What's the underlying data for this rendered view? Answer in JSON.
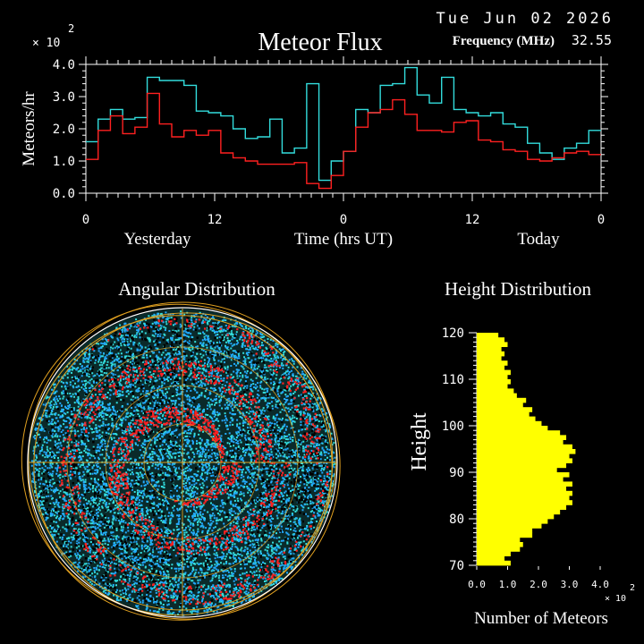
{
  "header": {
    "date": "Tue Jun 02 2026",
    "frequency_label": "Frequency (MHz)",
    "frequency_value": "32.55"
  },
  "colors": {
    "background": "#000000",
    "cyan": "#33dddd",
    "red": "#ff2020",
    "yellow": "#ffff00",
    "orange": "#e0a020",
    "white": "#ffffff"
  },
  "chart_data": [
    {
      "type": "line",
      "title": "Meteor Flux",
      "xlabel": "Time (hrs UT)",
      "ylabel": "Meteors/hr",
      "y_exponent_label": "× 10",
      "y_exponent_power": "2",
      "xlim": [
        0,
        48
      ],
      "ylim": [
        0,
        4
      ],
      "xticks": [
        0,
        12,
        24,
        36,
        48
      ],
      "xtick_labels": [
        "0",
        "12",
        "0",
        "12",
        "0"
      ],
      "yticks": [
        0,
        1,
        2,
        3,
        4
      ],
      "ytick_labels": [
        "0.0",
        "1.0",
        "2.0",
        "3.0",
        "4.0"
      ],
      "period_labels": [
        "Yesterday",
        "Today"
      ],
      "line_style": "step",
      "series": [
        {
          "color": "#33dddd",
          "values": [
            1.6,
            2.3,
            2.6,
            2.3,
            2.35,
            3.6,
            3.5,
            3.5,
            3.35,
            2.55,
            2.5,
            2.4,
            2.0,
            1.7,
            1.75,
            2.3,
            1.25,
            1.4,
            3.4,
            0.4,
            1.0,
            1.3,
            2.6,
            2.5,
            3.35,
            3.4,
            3.9,
            3.05,
            2.8,
            3.6,
            2.6,
            2.5,
            2.4,
            2.5,
            2.15,
            2.05,
            1.55,
            1.25,
            1.05,
            1.4,
            1.55,
            1.95
          ]
        },
        {
          "color": "#ff2020",
          "values": [
            1.05,
            1.95,
            2.4,
            1.85,
            2.05,
            3.1,
            2.15,
            1.75,
            1.95,
            1.8,
            1.95,
            1.25,
            1.1,
            1.0,
            0.9,
            0.9,
            0.9,
            0.95,
            0.3,
            0.15,
            0.55,
            1.3,
            2.05,
            2.5,
            2.6,
            2.9,
            2.45,
            1.95,
            1.95,
            1.9,
            2.2,
            2.25,
            1.65,
            1.6,
            1.35,
            1.3,
            1.05,
            1.0,
            1.1,
            1.25,
            1.3,
            1.2
          ]
        }
      ]
    },
    {
      "type": "scatter",
      "title": "Angular Distribution",
      "projection": "polar-sky",
      "point_colors": [
        "#33dddd",
        "#22aaff",
        "#ff2020"
      ],
      "grid_color": "#e0a020"
    },
    {
      "type": "bar",
      "orientation": "horizontal",
      "title": "Height Distribution",
      "ylabel": "Height",
      "xlabel": "Number of Meteors",
      "x_exponent_label": "× 10",
      "x_exponent_power": "2",
      "xlim": [
        0,
        4
      ],
      "ylim": [
        70,
        120
      ],
      "xticks": [
        0,
        1,
        2,
        3,
        4
      ],
      "xtick_labels": [
        "0.0",
        "1.0",
        "2.0",
        "3.0",
        "4.0"
      ],
      "yticks": [
        70,
        80,
        90,
        100,
        110,
        120
      ],
      "ytick_labels": [
        "70",
        "80",
        "90",
        "100",
        "110",
        "120"
      ],
      "bar_color": "#ffff00",
      "heights": [
        70,
        71,
        72,
        73,
        74,
        75,
        76,
        77,
        78,
        79,
        80,
        81,
        82,
        83,
        84,
        85,
        86,
        87,
        88,
        89,
        90,
        91,
        92,
        93,
        94,
        95,
        96,
        97,
        98,
        99,
        100,
        101,
        102,
        103,
        104,
        105,
        106,
        107,
        108,
        109,
        110,
        111,
        112,
        113,
        114,
        115,
        116,
        117,
        118,
        119
      ],
      "values": [
        1.1,
        0.9,
        1.1,
        1.4,
        1.5,
        1.4,
        1.8,
        1.8,
        2.1,
        2.3,
        2.5,
        2.7,
        2.9,
        3.1,
        3.0,
        3.1,
        2.9,
        3.1,
        2.8,
        3.0,
        2.6,
        2.9,
        3.1,
        3.0,
        3.2,
        3.1,
        2.8,
        2.9,
        2.7,
        2.3,
        2.1,
        1.9,
        1.7,
        1.8,
        1.5,
        1.6,
        1.3,
        1.2,
        1.0,
        1.1,
        1.0,
        1.1,
        0.9,
        1.0,
        0.8,
        0.9,
        0.8,
        1.0,
        0.9,
        0.7
      ]
    }
  ]
}
